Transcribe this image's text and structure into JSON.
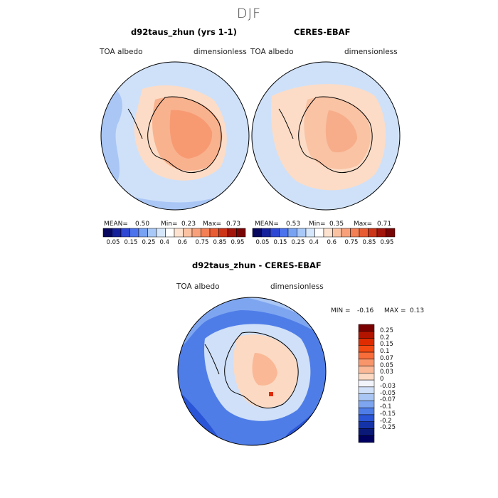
{
  "season": "DJF",
  "panels": {
    "model": {
      "title": "d92taus_zhun (yrs 1-1)",
      "left_label": "TOA albedo",
      "right_label": "dimensionless",
      "mean_label": "MEAN=",
      "mean": "0.50",
      "min_label": "Min=",
      "min": "0.23",
      "max_label": "Max=",
      "max": "0.73"
    },
    "obs": {
      "title": "CERES-EBAF",
      "left_label": "TOA albedo",
      "right_label": "dimensionless",
      "mean_label": "MEAN=",
      "mean": "0.53",
      "min_label": "Min=",
      "min": "0.35",
      "max_label": "Max=",
      "max": "0.71"
    },
    "diff": {
      "title": "d92taus_zhun - CERES-EBAF",
      "left_label": "TOA albedo",
      "right_label": "dimensionless",
      "min_label": "MIN =",
      "min": "-0.16",
      "max_label": "MAX =",
      "max": "0.13"
    }
  },
  "colorbar_top": {
    "labels": [
      "0.05",
      "0.15",
      "0.25",
      "0.4",
      "0.6",
      "0.75",
      "0.85",
      "0.95"
    ],
    "colors": [
      "#08085e",
      "#15219a",
      "#2f48d3",
      "#4c73ec",
      "#78a2f2",
      "#a8c8f7",
      "#d6e7fb",
      "#ffffff",
      "#fde2cf",
      "#fbc2a2",
      "#f7a07a",
      "#f37f54",
      "#e85c34",
      "#cc3518",
      "#a3150b",
      "#780505"
    ]
  },
  "colorbar_diff": {
    "labels": [
      "0.25",
      "0.2",
      "0.15",
      "0.1",
      "0.07",
      "0.05",
      "0.03",
      "0",
      "-0.03",
      "-0.05",
      "-0.07",
      "-0.1",
      "-0.15",
      "-0.2",
      "-0.25"
    ],
    "colors": [
      "#7a0000",
      "#b31400",
      "#df2b00",
      "#f44a12",
      "#f86d3a",
      "#f9956a",
      "#fab896",
      "#fcd9c2",
      "#f2f4fb",
      "#cfe0f8",
      "#a9c6f5",
      "#7ea6f0",
      "#4f7de8",
      "#2a55d6",
      "#1533a8",
      "#0a1878",
      "#000060"
    ]
  },
  "colors": {
    "ocean_light": "#cfe1f9",
    "ocean_mid": "#a9c6f5",
    "ice_pale": "#fcdcc6",
    "ice_mid": "#f9b28e",
    "ice_dark": "#f79a72"
  }
}
